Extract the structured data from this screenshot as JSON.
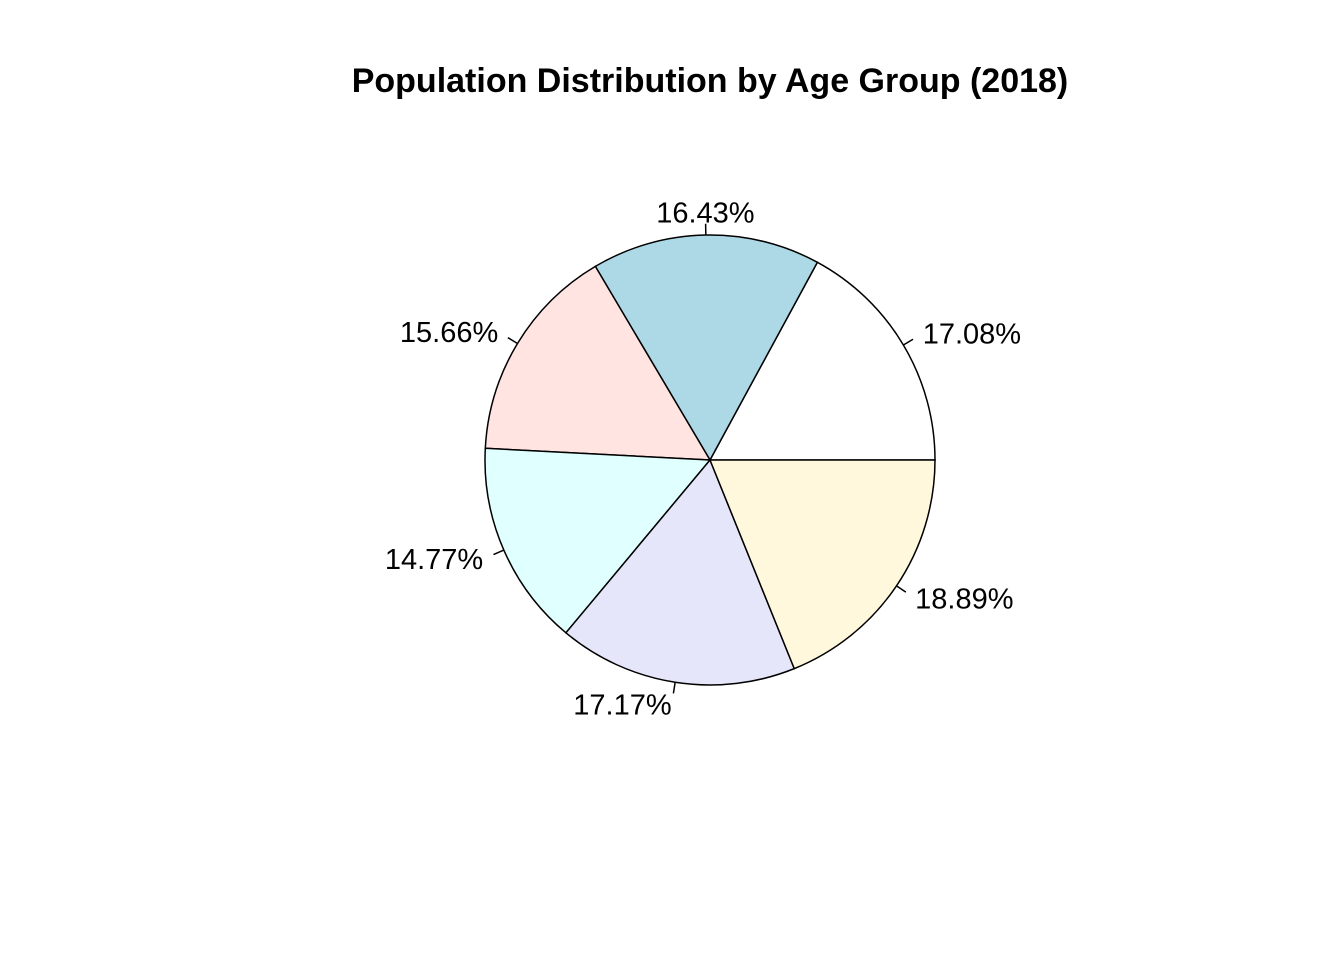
{
  "chart_data": {
    "type": "pie",
    "title": "Population Distribution by Age Group (2018)",
    "start_angle_deg": 0,
    "direction": "counterclockwise",
    "slices": [
      {
        "value": 17.08,
        "label": "17.08%",
        "color": "#FFFFFF"
      },
      {
        "value": 16.43,
        "label": "16.43%",
        "color": "#ADD8E6"
      },
      {
        "value": 15.66,
        "label": "15.66%",
        "color": "#FFE4E1"
      },
      {
        "value": 14.77,
        "label": "14.77%",
        "color": "#E0FFFF"
      },
      {
        "value": 17.17,
        "label": "17.17%",
        "color": "#E6E6FA"
      },
      {
        "value": 18.89,
        "label": "18.89%",
        "color": "#FFF8DC"
      }
    ]
  }
}
